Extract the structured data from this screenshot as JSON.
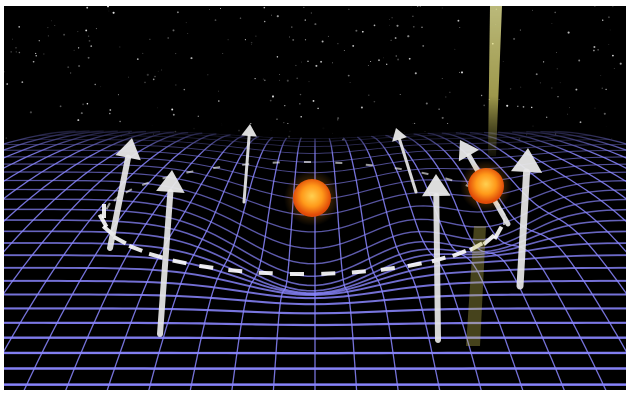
{
  "scene": {
    "colors": {
      "space": "#000000",
      "grid": "#8a86ff",
      "grid_glow": "#5a4fd8",
      "arrow": "#e8e8e8",
      "orbit_dash": "#ffffff",
      "star_core": "#ffb020",
      "star_edge": "#e04a08",
      "beam": "#f4f2a0"
    },
    "objects": {
      "stars": [
        "center-star",
        "pulsar-star"
      ],
      "arrows": [
        "arrow-far-left",
        "arrow-left",
        "arrow-left-back",
        "arrow-mid-back",
        "arrow-right-mid",
        "arrow-pulsar-tilted",
        "arrow-right"
      ],
      "icons": [
        "star-icon",
        "pulsar-icon",
        "spin-arrow-icon"
      ]
    }
  }
}
